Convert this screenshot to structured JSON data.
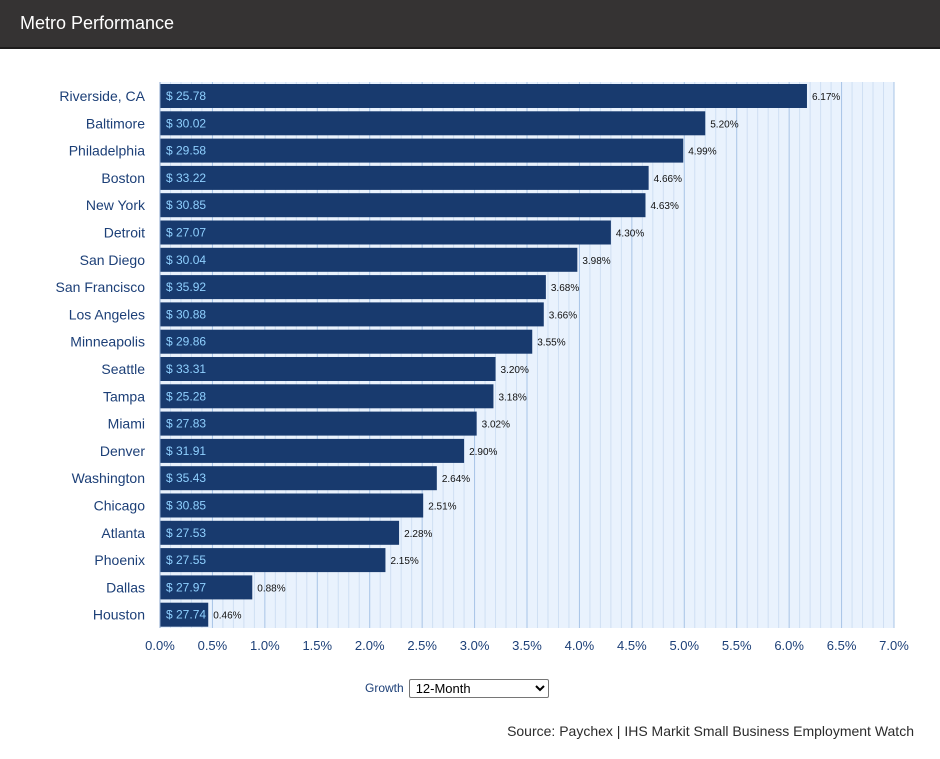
{
  "header": {
    "title": "Metro Performance"
  },
  "controls": {
    "label": "Growth",
    "selected": "12-Month"
  },
  "source": "Source: Paychex | IHS Markit Small Business Employment Watch",
  "colors": {
    "bar": "#183a6e",
    "plot_background": "#e9f2fd",
    "minor_grid": "#cfdff3",
    "major_grid": "#a8c4e6",
    "category_label": "#1c3f77",
    "wage_label": "#8fd0ff",
    "header": "#353333"
  },
  "chart_data": {
    "type": "bar",
    "orientation": "horizontal",
    "categories": [
      "Riverside, CA",
      "Baltimore",
      "Philadelphia",
      "Boston",
      "New York",
      "Detroit",
      "San Diego",
      "San Francisco",
      "Los Angeles",
      "Minneapolis",
      "Seattle",
      "Tampa",
      "Miami",
      "Denver",
      "Washington",
      "Chicago",
      "Atlanta",
      "Phoenix",
      "Dallas",
      "Houston"
    ],
    "values": [
      6.17,
      5.2,
      4.99,
      4.66,
      4.63,
      4.3,
      3.98,
      3.68,
      3.66,
      3.55,
      3.2,
      3.18,
      3.02,
      2.9,
      2.64,
      2.51,
      2.28,
      2.15,
      0.88,
      0.46
    ],
    "value_labels": [
      "6.17%",
      "5.20%",
      "4.99%",
      "4.66%",
      "4.63%",
      "4.30%",
      "3.98%",
      "3.68%",
      "3.66%",
      "3.55%",
      "3.20%",
      "3.18%",
      "3.02%",
      "2.90%",
      "2.64%",
      "2.51%",
      "2.28%",
      "2.15%",
      "0.88%",
      "0.46%"
    ],
    "bar_labels": [
      "$ 25.78",
      "$ 30.02",
      "$ 29.58",
      "$ 33.22",
      "$ 30.85",
      "$ 27.07",
      "$ 30.04",
      "$ 35.92",
      "$ 30.88",
      "$ 29.86",
      "$ 33.31",
      "$ 25.28",
      "$ 27.83",
      "$ 31.91",
      "$ 35.43",
      "$ 30.85",
      "$ 27.53",
      "$ 27.55",
      "$ 27.97",
      "$ 27.74"
    ],
    "xlim": [
      0,
      7
    ],
    "x_ticks": [
      0,
      0.5,
      1,
      1.5,
      2,
      2.5,
      3,
      3.5,
      4,
      4.5,
      5,
      5.5,
      6,
      6.5,
      7
    ],
    "x_tick_labels": [
      "0.0%",
      "0.5%",
      "1.0%",
      "1.5%",
      "2.0%",
      "2.5%",
      "3.0%",
      "3.5%",
      "4.0%",
      "4.5%",
      "5.0%",
      "5.5%",
      "6.0%",
      "6.5%",
      "7.0%"
    ],
    "minor_step": 0.1,
    "grid": true,
    "legend": "none"
  }
}
